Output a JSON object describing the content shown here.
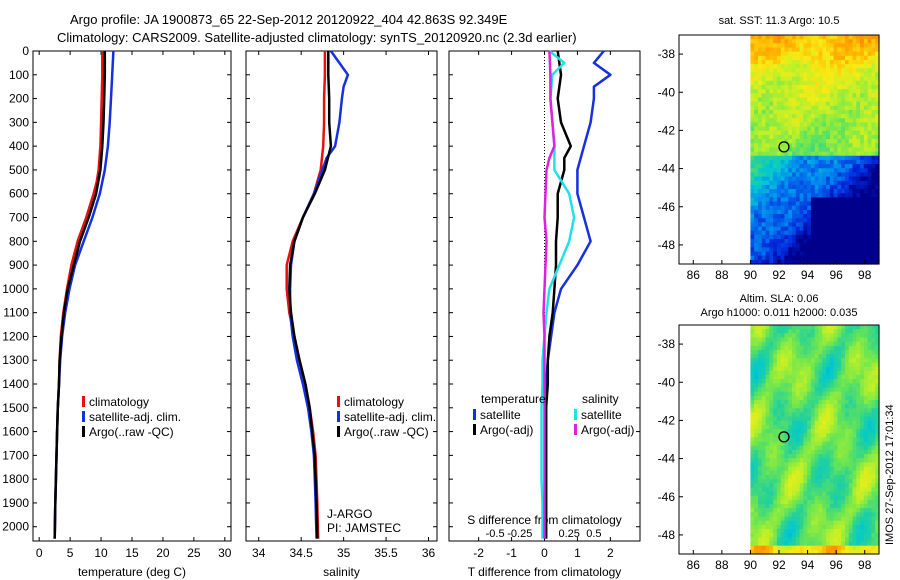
{
  "header": {
    "line1": "Argo profile: JA 1900873_65 22-Sep-2012 20120922_404 42.863S 92.349E",
    "line2": "Climatology: CARS2009. Satellite-adjusted climatology: synTS_20120920.nc (2.3d earlier)"
  },
  "depth_axis": {
    "ticks": [
      0,
      100,
      200,
      300,
      400,
      500,
      600,
      700,
      800,
      900,
      1000,
      1100,
      1200,
      1300,
      1400,
      1500,
      1600,
      1700,
      1800,
      1900,
      2000
    ],
    "labels": [
      "0",
      "100",
      "200",
      "300",
      "400",
      "500",
      "600",
      "700",
      "800",
      "900",
      "1000",
      "1100",
      "1200",
      "1300",
      "1400",
      "1500",
      "1600",
      "1700",
      "1800",
      "1900",
      "2000"
    ]
  },
  "colors": {
    "climatology": "#e8100e",
    "satellite": "#1530e0",
    "argo": "#000000",
    "sat_salinity": "#22e0e8",
    "argo_salinity": "#e020e0"
  },
  "chart_data": [
    {
      "type": "line",
      "name": "temperature",
      "xlabel": "temperature (deg C)",
      "xlim": [
        -1,
        31
      ],
      "xticks": [
        0,
        5,
        10,
        15,
        20,
        25,
        30
      ],
      "xtick_labels": [
        "0",
        "5",
        "10",
        "15",
        "20",
        "25",
        "30"
      ],
      "ylim": [
        2060,
        0
      ],
      "legend": [
        "climatology",
        "satellite-adj. clim.",
        "Argo(..raw -QC)"
      ],
      "series": [
        {
          "name": "climatology",
          "color": "red",
          "depth": [
            0,
            100,
            200,
            300,
            400,
            500,
            550,
            600,
            650,
            700,
            800,
            900,
            1000,
            1100,
            1200,
            1300,
            1400,
            1500,
            1600,
            1700,
            1800,
            1900,
            2050
          ],
          "values": [
            10.2,
            10.2,
            10.1,
            10.0,
            9.9,
            9.6,
            9.3,
            8.8,
            8.2,
            7.6,
            6.2,
            5.2,
            4.5,
            3.9,
            3.5,
            3.3,
            3.2,
            3.0,
            2.9,
            2.8,
            2.7,
            2.6,
            2.5
          ]
        },
        {
          "name": "satellite-adj. clim.",
          "color": "blue",
          "depth": [
            0,
            100,
            200,
            300,
            400,
            500,
            600,
            700,
            800,
            900,
            1000,
            1100,
            1200,
            1300,
            1400,
            1500,
            1600,
            1700,
            1800,
            1900,
            2050
          ],
          "values": [
            12.0,
            11.8,
            11.6,
            11.4,
            11.1,
            10.6,
            9.8,
            8.6,
            7.2,
            5.8,
            4.9,
            4.2,
            3.7,
            3.4,
            3.2,
            3.0,
            2.9,
            2.8,
            2.7,
            2.6,
            2.5
          ]
        },
        {
          "name": "Argo(..raw -QC)",
          "color": "black",
          "depth": [
            0,
            100,
            200,
            300,
            400,
            500,
            600,
            700,
            800,
            900,
            1000,
            1100,
            1200,
            1300,
            1400,
            1500,
            1600,
            1700,
            1800,
            1900,
            2050
          ],
          "values": [
            10.6,
            10.6,
            10.5,
            10.4,
            10.2,
            9.9,
            9.2,
            8.0,
            6.6,
            5.6,
            4.6,
            4.0,
            3.6,
            3.3,
            3.2,
            3.0,
            2.9,
            2.8,
            2.7,
            2.6,
            2.5
          ]
        }
      ]
    },
    {
      "type": "line",
      "name": "salinity",
      "xlabel": "salinity",
      "xlim": [
        33.85,
        36.1
      ],
      "xticks": [
        34,
        34.5,
        35,
        35.5,
        36
      ],
      "xtick_labels": [
        "34",
        "34.5",
        "35",
        "35.5",
        "36"
      ],
      "ylim": [
        2060,
        0
      ],
      "legend": [
        "climatology",
        "satellite-adj. clim.",
        "Argo(..raw -QC)"
      ],
      "annotations": [
        "J-ARGO",
        "PI: JAMSTEC"
      ],
      "series": [
        {
          "name": "climatology",
          "color": "red",
          "depth": [
            0,
            100,
            200,
            300,
            400,
            500,
            600,
            700,
            800,
            900,
            1000,
            1100,
            1200,
            1300,
            1400,
            1500,
            1600,
            1700,
            1800,
            1900,
            2050
          ],
          "values": [
            34.78,
            34.78,
            34.77,
            34.77,
            34.76,
            34.73,
            34.65,
            34.52,
            34.4,
            34.33,
            34.33,
            34.36,
            34.42,
            34.48,
            34.55,
            34.6,
            34.64,
            34.67,
            34.68,
            34.69,
            34.7
          ]
        },
        {
          "name": "satellite-adj. clim.",
          "color": "blue",
          "depth": [
            0,
            100,
            150,
            200,
            300,
            400,
            450,
            500,
            600,
            700,
            800,
            900,
            1000,
            1100,
            1200,
            1300,
            1400,
            1500,
            1600,
            1700,
            1800,
            1900,
            2050
          ],
          "values": [
            34.85,
            35.05,
            35.0,
            34.98,
            34.95,
            34.9,
            34.8,
            34.75,
            34.65,
            34.52,
            34.42,
            34.38,
            34.37,
            34.37,
            34.4,
            34.45,
            34.52,
            34.58,
            34.62,
            34.65,
            34.66,
            34.67,
            34.68
          ]
        },
        {
          "name": "Argo(..raw -QC)",
          "color": "black",
          "depth": [
            0,
            100,
            200,
            300,
            400,
            500,
            600,
            700,
            800,
            900,
            1000,
            1100,
            1200,
            1300,
            1400,
            1500,
            1600,
            1700,
            1800,
            1900,
            2050
          ],
          "values": [
            34.82,
            34.82,
            34.83,
            34.83,
            34.85,
            34.78,
            34.66,
            34.52,
            34.42,
            34.37,
            34.36,
            34.38,
            34.42,
            34.48,
            34.55,
            34.6,
            34.63,
            34.66,
            34.67,
            34.68,
            34.69
          ]
        }
      ]
    },
    {
      "type": "line",
      "name": "difference",
      "xlabel": "T difference from climatology",
      "top_label": "S difference from climatology",
      "xlim": [
        -2.9,
        2.9
      ],
      "xticks": [
        -2,
        -1,
        0,
        1,
        2
      ],
      "xtick_labels": [
        "-2",
        "-1",
        "0",
        "1",
        "2"
      ],
      "s_ticks": [
        -0.5,
        -0.25,
        0,
        0.25,
        0.5
      ],
      "s_tick_labels": [
        "-0.5",
        "-0.25",
        "0",
        "0.25",
        "0.5"
      ],
      "ylim": [
        2060,
        0
      ],
      "legend_temperature": [
        "temperature",
        "satellite",
        "Argo(-adj)"
      ],
      "legend_salinity": [
        "salinity",
        "satellite",
        "Argo(-adj)"
      ],
      "series": [
        {
          "name": "temperature satellite",
          "color": "blue",
          "depth": [
            0,
            50,
            100,
            150,
            200,
            300,
            400,
            500,
            600,
            700,
            800,
            900,
            1000,
            1100,
            1200,
            1300,
            1400,
            1500,
            1600,
            1700,
            1800,
            1900,
            2050
          ],
          "values": [
            1.8,
            1.5,
            2.0,
            1.5,
            1.5,
            1.4,
            1.2,
            1.0,
            1.0,
            1.2,
            1.4,
            1.0,
            0.5,
            0.3,
            0.2,
            0.1,
            0.05,
            0.05,
            0.05,
            0.05,
            0.05,
            0.05,
            0.05
          ]
        },
        {
          "name": "temperature Argo(-adj)",
          "color": "black",
          "depth": [
            0,
            100,
            200,
            300,
            400,
            450,
            500,
            600,
            700,
            800,
            900,
            1000,
            1100,
            1200,
            1300,
            1400,
            1500,
            1600,
            1700,
            1800,
            1900,
            2050
          ],
          "values": [
            0.4,
            0.5,
            0.4,
            0.5,
            0.8,
            0.6,
            0.6,
            0.4,
            0.4,
            0.35,
            0.35,
            0.3,
            0.25,
            0.15,
            0.1,
            0.1,
            0.05,
            0.05,
            0.05,
            0.05,
            0.05,
            0.05
          ]
        },
        {
          "name": "salinity satellite",
          "color": "cyan",
          "depth": [
            0,
            50,
            100,
            200,
            300,
            400,
            500,
            600,
            700,
            800,
            900,
            1000,
            1100,
            1200,
            1300,
            1400,
            1500,
            1600,
            1700,
            1800,
            1900,
            2050
          ],
          "values": [
            0.05,
            0.2,
            0.08,
            0.06,
            0.08,
            0.1,
            0.1,
            0.25,
            0.3,
            0.25,
            0.15,
            0.05,
            0.02,
            0.0,
            -0.02,
            -0.02,
            -0.03,
            -0.03,
            -0.03,
            -0.03,
            -0.02,
            -0.02
          ]
        },
        {
          "name": "salinity Argo(-adj)",
          "color": "magenta",
          "depth": [
            0,
            100,
            200,
            300,
            400,
            450,
            500,
            600,
            700,
            800,
            900,
            1000,
            1100,
            1200,
            1300,
            1400,
            1500,
            1600,
            1700,
            1800,
            1900,
            2050
          ],
          "values": [
            0.05,
            0.06,
            0.06,
            0.08,
            0.1,
            0.05,
            0.02,
            0.01,
            0.0,
            0.02,
            0.01,
            0.0,
            -0.01,
            0.0,
            0.0,
            0.0,
            0.0,
            0.0,
            0.0,
            0.0,
            0.0,
            0.0
          ]
        }
      ]
    },
    {
      "type": "heatmap",
      "name": "sst_map",
      "title": "sat. SST: 11.3 Argo: 10.5",
      "xlim": [
        85,
        99
      ],
      "ylim": [
        -49,
        -37
      ],
      "xticks": [
        86,
        88,
        90,
        92,
        94,
        96,
        98
      ],
      "xtick_labels": [
        "86",
        "88",
        "90",
        "92",
        "94",
        "96",
        "98"
      ],
      "yticks": [
        -38,
        -40,
        -42,
        -44,
        -46,
        -48
      ],
      "ytick_labels": [
        "-38",
        "-40",
        "-42",
        "-44",
        "-46",
        "-48"
      ],
      "data_lon_min": 90,
      "argo_position": [
        92.349,
        -42.863
      ]
    },
    {
      "type": "heatmap",
      "name": "sla_map",
      "title_line1": "Altim. SLA: 0.06",
      "title_line2": "Argo h1000: 0.011 h2000: 0.035",
      "xlim": [
        85,
        99
      ],
      "ylim": [
        -49,
        -37
      ],
      "xticks": [
        86,
        88,
        90,
        92,
        94,
        96,
        98
      ],
      "xtick_labels": [
        "86",
        "88",
        "90",
        "92",
        "94",
        "96",
        "98"
      ],
      "yticks": [
        -38,
        -40,
        -42,
        -44,
        -46,
        -48
      ],
      "ytick_labels": [
        "-38",
        "-40",
        "-42",
        "-44",
        "-46",
        "-48"
      ],
      "data_lon_min": 90,
      "argo_position": [
        92.349,
        -42.863
      ]
    }
  ],
  "footer": {
    "stamp": "IMOS 27-Sep-2012 17:01:34"
  }
}
